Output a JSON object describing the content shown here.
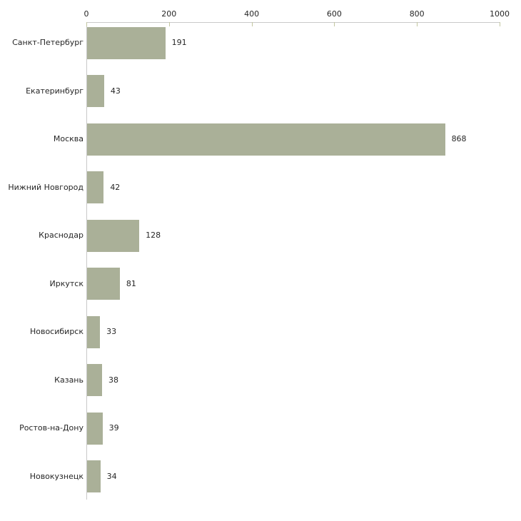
{
  "chart_data": {
    "type": "bar",
    "orientation": "horizontal",
    "title": "",
    "xlabel": "",
    "ylabel": "",
    "categories": [
      "Санкт-Петербург",
      "Екатеринбург",
      "Москва",
      "Нижний Новгород",
      "Краснодар",
      "Иркутск",
      "Новосибирск",
      "Казань",
      "Ростов-на-Дону",
      "Новокузнецк"
    ],
    "values": [
      191,
      43,
      868,
      42,
      128,
      81,
      33,
      38,
      39,
      34
    ],
    "x_ticks": [
      "0",
      "200",
      "400",
      "600",
      "800",
      "1000"
    ],
    "x_tick_values": [
      0,
      200,
      400,
      600,
      800,
      1000
    ],
    "xlim": [
      0,
      1000
    ],
    "grid": false,
    "legend": false,
    "value_labels_shown": true,
    "colors": {
      "bar": "#aab098",
      "axis": "#c9c9c9",
      "tick": "#c2c6a0",
      "text": "#262626",
      "background": "#ffffff"
    }
  }
}
